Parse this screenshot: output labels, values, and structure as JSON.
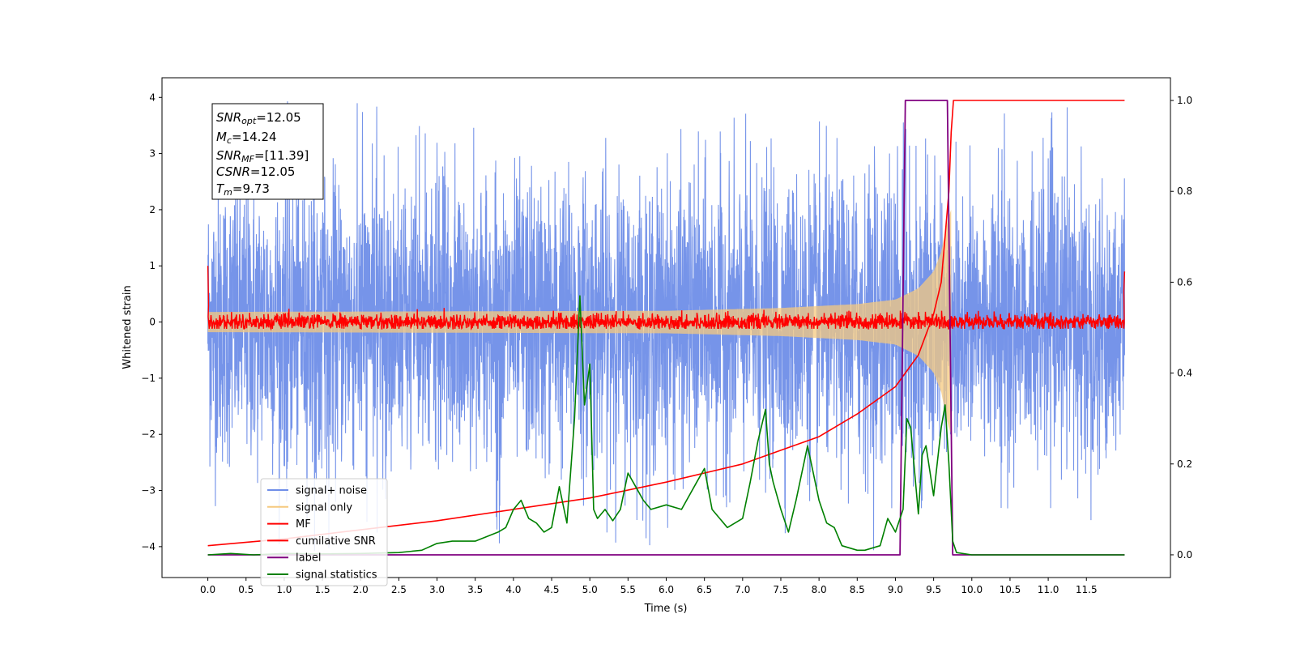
{
  "chart_data": {
    "type": "line",
    "xlabel": "Time (s)",
    "ylabel": "Whitened strain",
    "xlim": [
      -0.6,
      12.6
    ],
    "ylim": [
      -4.55,
      4.35
    ],
    "y2lim": [
      -0.05,
      1.05
    ],
    "x_ticks": [
      "0.0",
      "0.5",
      "1.0",
      "1.5",
      "2.0",
      "2.5",
      "3.0",
      "3.5",
      "4.0",
      "4.5",
      "5.0",
      "5.5",
      "6.0",
      "6.5",
      "7.0",
      "7.5",
      "8.0",
      "8.5",
      "9.0",
      "9.5",
      "10.0",
      "10.5",
      "11.0",
      "11.5"
    ],
    "y_ticks": [
      "4",
      "3",
      "2",
      "1",
      "0",
      "−1",
      "−2",
      "−3",
      "−4"
    ],
    "y2_ticks": [
      "1.0",
      "0.8",
      "0.6",
      "0.4",
      "0.2",
      "0.0"
    ],
    "annotation": {
      "snr_opt": {
        "base": "SNR",
        "sub": "opt",
        "value": "=12.05"
      },
      "mc": {
        "base": "M",
        "sub": "c",
        "value": "=14.24"
      },
      "snr_mf": {
        "base": "SNR",
        "sub": "MF",
        "value": "=[11.39]"
      },
      "csnr": {
        "base": "CSNR",
        "sub": "",
        "value": "=12.05"
      },
      "tm": {
        "base": "T",
        "sub": "m",
        "value": "=9.73"
      }
    },
    "merger_time": 9.73,
    "duration": 12.0,
    "series": [
      {
        "name": "signal+ noise",
        "color": "#6f8ee8",
        "axis": "left",
        "style": "noise",
        "x_range": [
          0.0,
          12.0
        ],
        "amplitude_sigma": 1.25,
        "peak_range": [
          -4.1,
          3.95
        ]
      },
      {
        "name": "signal only",
        "color": "#f5c97f",
        "axis": "left",
        "style": "chirp",
        "x_range": [
          0.0,
          9.73
        ],
        "envelope": {
          "x": [
            0.0,
            6.0,
            7.5,
            8.5,
            9.0,
            9.3,
            9.5,
            9.6,
            9.68,
            9.73
          ],
          "y": [
            0.18,
            0.2,
            0.25,
            0.32,
            0.4,
            0.6,
            0.9,
            1.25,
            1.8,
            2.0
          ]
        }
      },
      {
        "name": "MF",
        "color": "#ff0000",
        "axis": "left",
        "style": "mf",
        "x_range": [
          0.0,
          12.0
        ],
        "spread": 0.12,
        "edges": {
          "start": [
            1.0,
            0.3
          ],
          "end": [
            0.9,
            0.55
          ]
        }
      },
      {
        "name": "cumilative SNR",
        "color": "#ff0000",
        "axis": "right",
        "x": [
          0.0,
          1.0,
          2.0,
          3.0,
          4.0,
          5.0,
          6.0,
          7.0,
          7.5,
          8.0,
          8.5,
          9.0,
          9.3,
          9.5,
          9.6,
          9.7,
          9.73,
          9.76,
          12.0
        ],
        "y": [
          0.02,
          0.035,
          0.055,
          0.075,
          0.1,
          0.125,
          0.16,
          0.2,
          0.23,
          0.26,
          0.31,
          0.37,
          0.44,
          0.53,
          0.6,
          0.8,
          0.93,
          1.0,
          1.0
        ]
      },
      {
        "name": "label",
        "color": "#800080",
        "axis": "right",
        "x": [
          0.0,
          9.06,
          9.13,
          9.68,
          9.75,
          12.0
        ],
        "y": [
          0.0,
          0.0,
          1.0,
          1.0,
          0.0,
          0.0
        ]
      },
      {
        "name": "signal statistics",
        "color": "#008000",
        "axis": "right",
        "x": [
          0.0,
          0.3,
          0.6,
          1.0,
          1.5,
          2.0,
          2.5,
          2.8,
          3.0,
          3.2,
          3.5,
          3.8,
          3.9,
          4.0,
          4.1,
          4.2,
          4.3,
          4.4,
          4.5,
          4.6,
          4.7,
          4.8,
          4.87,
          4.93,
          5.0,
          5.05,
          5.1,
          5.2,
          5.3,
          5.4,
          5.5,
          5.6,
          5.7,
          5.8,
          6.0,
          6.2,
          6.4,
          6.5,
          6.6,
          6.8,
          7.0,
          7.1,
          7.2,
          7.3,
          7.35,
          7.4,
          7.5,
          7.6,
          7.7,
          7.85,
          8.0,
          8.1,
          8.2,
          8.3,
          8.5,
          8.6,
          8.8,
          8.9,
          9.0,
          9.1,
          9.15,
          9.2,
          9.3,
          9.35,
          9.4,
          9.5,
          9.6,
          9.65,
          9.7,
          9.75,
          9.8,
          10.0,
          12.0
        ],
        "y": [
          0.0,
          0.003,
          0.0,
          0.003,
          0.002,
          0.003,
          0.005,
          0.01,
          0.025,
          0.03,
          0.03,
          0.05,
          0.06,
          0.1,
          0.12,
          0.08,
          0.07,
          0.05,
          0.06,
          0.15,
          0.07,
          0.3,
          0.57,
          0.33,
          0.42,
          0.1,
          0.08,
          0.1,
          0.075,
          0.1,
          0.18,
          0.15,
          0.12,
          0.1,
          0.11,
          0.1,
          0.16,
          0.19,
          0.1,
          0.06,
          0.08,
          0.16,
          0.25,
          0.32,
          0.2,
          0.16,
          0.1,
          0.05,
          0.12,
          0.24,
          0.12,
          0.07,
          0.06,
          0.02,
          0.01,
          0.01,
          0.02,
          0.08,
          0.05,
          0.1,
          0.3,
          0.28,
          0.09,
          0.22,
          0.24,
          0.13,
          0.28,
          0.33,
          0.2,
          0.03,
          0.005,
          0.0,
          0.0
        ]
      }
    ],
    "legend": {
      "position": "lower-left",
      "entries": [
        "signal+ noise",
        "signal only",
        "MF",
        "cumilative SNR",
        "label",
        "signal statistics"
      ]
    }
  }
}
